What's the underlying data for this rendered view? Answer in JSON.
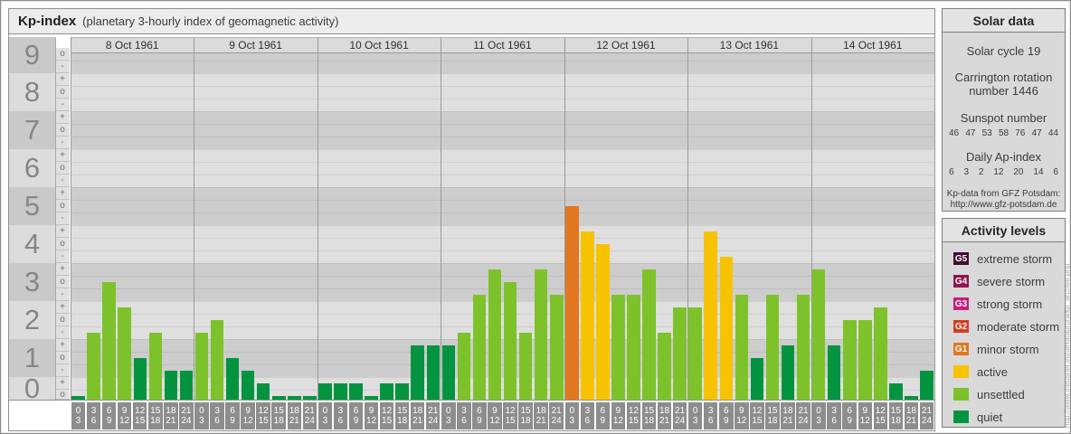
{
  "title": {
    "main": "Kp-index",
    "subtitle": "(planetary 3-hourly index of geomagnetic activity)"
  },
  "watermark": "http://www.theusner.eu/terra/aurora/kp_archive.php",
  "chart_data": {
    "type": "bar",
    "title": "Kp-index (planetary 3-hourly index of geomagnetic activity)",
    "ylabel": "Kp",
    "ylim": [
      0,
      9.1
    ],
    "y_tick_labels": [
      "9",
      "8",
      "7",
      "6",
      "5",
      "4",
      "3",
      "2",
      "1",
      "0"
    ],
    "sub_tick_symbols": [
      "+",
      "o",
      "-"
    ],
    "grid": "thirds",
    "legend_position": "right-box",
    "hour_intervals": [
      [
        "0",
        "3"
      ],
      [
        "3",
        "6"
      ],
      [
        "6",
        "9"
      ],
      [
        "9",
        "12"
      ],
      [
        "12",
        "15"
      ],
      [
        "15",
        "18"
      ],
      [
        "18",
        "21"
      ],
      [
        "21",
        "24"
      ]
    ],
    "days": [
      {
        "date": "8 Oct 1961",
        "kp": [
          "0o",
          "2-",
          "3o",
          "2+",
          "1o",
          "2-",
          "1-",
          "1-"
        ],
        "kp_numeric": [
          0,
          1.67,
          3,
          2.33,
          1,
          1.67,
          0.67,
          0.67
        ]
      },
      {
        "date": "9 Oct 1961",
        "kp": [
          "2-",
          "2o",
          "1o",
          "1-",
          "0+",
          "0o",
          "0o",
          "0o"
        ],
        "kp_numeric": [
          1.67,
          2,
          1,
          0.67,
          0.33,
          0,
          0,
          0
        ]
      },
      {
        "date": "10 Oct 1961",
        "kp": [
          "0+",
          "0+",
          "0+",
          "0o",
          "0+",
          "0+",
          "1+",
          "1+"
        ],
        "kp_numeric": [
          0.33,
          0.33,
          0.33,
          0,
          0.33,
          0.33,
          1.33,
          1.33
        ]
      },
      {
        "date": "11 Oct 1961",
        "kp": [
          "1+",
          "2-",
          "3-",
          "3+",
          "3o",
          "2-",
          "3+",
          "3-"
        ],
        "kp_numeric": [
          1.33,
          1.67,
          2.67,
          3.33,
          3,
          1.67,
          3.33,
          2.67
        ]
      },
      {
        "date": "12 Oct 1961",
        "kp": [
          "5o",
          "4+",
          "4o",
          "3-",
          "3-",
          "3+",
          "2-",
          "2+"
        ],
        "kp_numeric": [
          5,
          4.33,
          4,
          2.67,
          2.67,
          3.33,
          1.67,
          2.33
        ]
      },
      {
        "date": "13 Oct 1961",
        "kp": [
          "2+",
          "4+",
          "4-",
          "3-",
          "1o",
          "3-",
          "1+",
          "3-"
        ],
        "kp_numeric": [
          2.33,
          4.33,
          3.67,
          2.67,
          1,
          2.67,
          1.33,
          2.67
        ]
      },
      {
        "date": "14 Oct 1961",
        "kp": [
          "3+",
          "1+",
          "2o",
          "2o",
          "2+",
          "0+",
          "0o",
          "1-"
        ],
        "kp_numeric": [
          3.33,
          1.33,
          2,
          2,
          2.33,
          0.33,
          0,
          0.67
        ]
      }
    ],
    "level_colors": {
      "quiet": "#049440",
      "unsettled": "#7ec22b",
      "active": "#f7c300",
      "G1": "#e1771f",
      "G2": "#d93a20",
      "G3": "#c71d7f",
      "G4": "#901553",
      "G5": "#400c2e"
    }
  },
  "solar_data": {
    "header": "Solar data",
    "cycle": "Solar cycle 19",
    "carrington_line1": "Carrington rotation",
    "carrington_line2": "number 1446",
    "sunspot_label": "Sunspot number",
    "sunspot_values": [
      "46",
      "47",
      "53",
      "58",
      "76",
      "47",
      "44"
    ],
    "ap_label": "Daily Ap-index",
    "ap_values": [
      "6",
      "3",
      "2",
      "12",
      "20",
      "14",
      "6"
    ],
    "credit_line1": "Kp-data from GFZ Potsdam:",
    "credit_line2": "http://www.gfz-potsdam.de"
  },
  "activity_levels": {
    "header": "Activity levels",
    "items": [
      {
        "code": "G5",
        "color": "#400c2e",
        "label": "extreme storm"
      },
      {
        "code": "G4",
        "color": "#901553",
        "label": "severe storm"
      },
      {
        "code": "G3",
        "color": "#c71d7f",
        "label": "strong storm"
      },
      {
        "code": "G2",
        "color": "#d93a20",
        "label": "moderate storm"
      },
      {
        "code": "G1",
        "color": "#e1771f",
        "label": "minor storm"
      },
      {
        "code": "",
        "color": "#f7c300",
        "label": "active"
      },
      {
        "code": "",
        "color": "#7ec22b",
        "label": "unsettled"
      },
      {
        "code": "",
        "color": "#049440",
        "label": "quiet"
      }
    ]
  }
}
